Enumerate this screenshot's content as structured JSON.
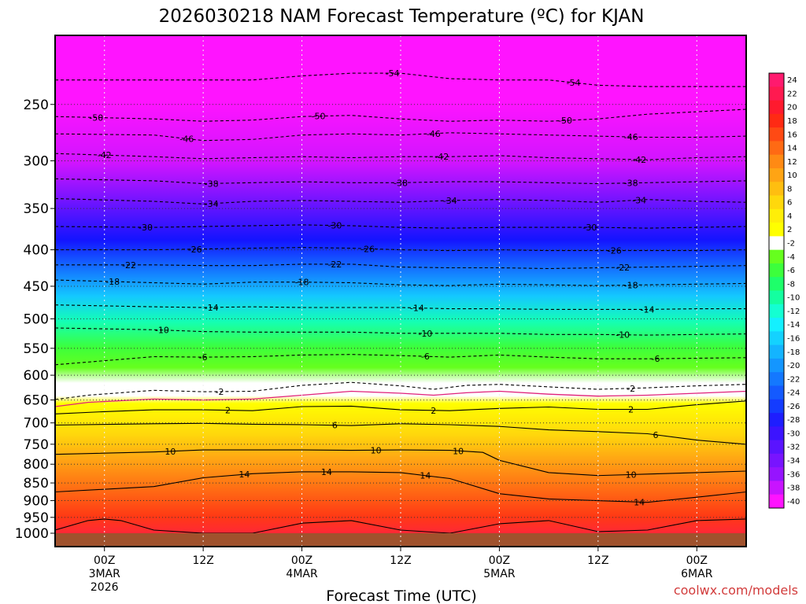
{
  "chart_data": {
    "type": "heatmap",
    "title": "2026030218 NAM Forecast Temperature (ºC) for KJAN",
    "xlabel": "Forecast Time (UTC)",
    "ylabel": "",
    "credit": "coolwx.com/models",
    "y_scale": "log-pressure",
    "ylim": [
      1000,
      200
    ],
    "y_ticks": [
      250,
      300,
      350,
      400,
      450,
      500,
      550,
      600,
      650,
      700,
      750,
      800,
      850,
      900,
      950,
      1000
    ],
    "xlim": [
      -6,
      78
    ],
    "x_ticks": [
      {
        "hour": 0,
        "lines": [
          "00Z",
          "3MAR",
          "2026"
        ]
      },
      {
        "hour": 12,
        "lines": [
          "12Z"
        ]
      },
      {
        "hour": 24,
        "lines": [
          "00Z",
          "4MAR"
        ]
      },
      {
        "hour": 36,
        "lines": [
          "12Z"
        ]
      },
      {
        "hour": 48,
        "lines": [
          "00Z",
          "5MAR"
        ]
      },
      {
        "hour": 60,
        "lines": [
          "12Z"
        ]
      },
      {
        "hour": 72,
        "lines": [
          "00Z",
          "6MAR"
        ]
      }
    ],
    "grid": true,
    "colorbar": {
      "placement": "right",
      "levels": [
        24,
        22,
        20,
        18,
        16,
        14,
        12,
        10,
        8,
        6,
        4,
        2,
        -2,
        -4,
        -6,
        -8,
        -10,
        -12,
        -14,
        -16,
        -18,
        -20,
        -22,
        -24,
        -26,
        -28,
        -30,
        -32,
        -34,
        -36,
        -38,
        -40
      ],
      "colors": [
        "#ff1a6e",
        "#ff1a50",
        "#ff1a2e",
        "#ff2a14",
        "#ff4a14",
        "#ff6a14",
        "#ff8a14",
        "#ffa414",
        "#ffbe10",
        "#ffd80c",
        "#ffee08",
        "#ffff00",
        "#ffffff",
        "#66ff1e",
        "#3cff3c",
        "#1eff6a",
        "#14ffa0",
        "#14ffd2",
        "#14f0ff",
        "#14d2ff",
        "#14b4ff",
        "#1496ff",
        "#1478ff",
        "#145aff",
        "#143cff",
        "#1e1eff",
        "#3c14ff",
        "#5a14ff",
        "#7814ff",
        "#9614ff",
        "#c814ff",
        "#ff14ff"
      ]
    },
    "isotherms": [
      {
        "value": -54,
        "x": [
          -6,
          6,
          12,
          18,
          24,
          30,
          36,
          42,
          48,
          54,
          60,
          66,
          72,
          78
        ],
        "p": [
          231,
          231,
          231,
          231,
          228,
          226,
          226,
          230,
          231,
          231,
          235,
          236,
          236,
          236
        ],
        "labels": [
          {
            "hour": 35,
            "text": "-54"
          },
          {
            "hour": 57,
            "text": "-54"
          }
        ]
      },
      {
        "value": -50,
        "x": [
          -6,
          6,
          12,
          18,
          24,
          30,
          36,
          42,
          48,
          54,
          60,
          66,
          72,
          78
        ],
        "p": [
          260,
          262,
          264,
          263,
          260,
          259,
          262,
          264,
          263,
          264,
          262,
          258,
          256,
          254
        ],
        "labels": [
          {
            "hour": -1,
            "text": "-50"
          },
          {
            "hour": 26,
            "text": "-50"
          },
          {
            "hour": 56,
            "text": "-50"
          }
        ]
      },
      {
        "value": -46,
        "x": [
          -6,
          6,
          12,
          18,
          24,
          30,
          36,
          42,
          48,
          54,
          60,
          66,
          72,
          78
        ],
        "p": [
          275,
          276,
          281,
          280,
          276,
          275,
          276,
          274,
          275,
          276,
          277,
          278,
          278,
          277
        ],
        "labels": [
          {
            "hour": 10,
            "text": "-46"
          },
          {
            "hour": 40,
            "text": "-46"
          },
          {
            "hour": 64,
            "text": "-46"
          }
        ]
      },
      {
        "value": -42,
        "x": [
          -6,
          6,
          12,
          18,
          24,
          30,
          36,
          42,
          48,
          54,
          60,
          66,
          72,
          78
        ],
        "p": [
          293,
          296,
          298,
          297,
          296,
          297,
          296,
          296,
          295,
          297,
          298,
          299,
          297,
          296
        ],
        "labels": [
          {
            "hour": 0,
            "text": "-42"
          },
          {
            "hour": 41,
            "text": "-42"
          },
          {
            "hour": 65,
            "text": "-42"
          }
        ]
      },
      {
        "value": -38,
        "x": [
          -6,
          6,
          12,
          18,
          24,
          30,
          36,
          42,
          48,
          54,
          60,
          66,
          72,
          78
        ],
        "p": [
          318,
          320,
          323,
          322,
          321,
          322,
          322,
          321,
          321,
          322,
          323,
          322,
          321,
          320
        ],
        "labels": [
          {
            "hour": 13,
            "text": "-38"
          },
          {
            "hour": 36,
            "text": "-38"
          },
          {
            "hour": 64,
            "text": "-38"
          }
        ]
      },
      {
        "value": -34,
        "x": [
          -6,
          6,
          12,
          18,
          24,
          30,
          36,
          42,
          48,
          54,
          60,
          66,
          72,
          78
        ],
        "p": [
          339,
          342,
          345,
          342,
          341,
          342,
          343,
          341,
          340,
          341,
          343,
          340,
          342,
          343
        ],
        "labels": [
          {
            "hour": 13,
            "text": "-34"
          },
          {
            "hour": 42,
            "text": "-34"
          },
          {
            "hour": 65,
            "text": "-34"
          }
        ]
      },
      {
        "value": -30,
        "x": [
          -6,
          6,
          12,
          18,
          24,
          30,
          36,
          42,
          48,
          54,
          60,
          66,
          72,
          78
        ],
        "p": [
          371,
          372,
          371,
          370,
          369,
          370,
          372,
          373,
          372,
          372,
          372,
          373,
          372,
          371
        ],
        "labels": [
          {
            "hour": 5,
            "text": "-30"
          },
          {
            "hour": 28,
            "text": "-30"
          },
          {
            "hour": 59,
            "text": "-30"
          }
        ]
      },
      {
        "value": -26,
        "x": [
          -6,
          6,
          12,
          18,
          24,
          30,
          36,
          42,
          48,
          54,
          60,
          66,
          72,
          78
        ],
        "p": [
          400,
          400,
          399,
          398,
          397,
          398,
          400,
          401,
          400,
          401,
          401,
          401,
          401,
          400
        ],
        "labels": [
          {
            "hour": 11,
            "text": "-26"
          },
          {
            "hour": 32,
            "text": "-26"
          },
          {
            "hour": 62,
            "text": "-26"
          }
        ]
      },
      {
        "value": -22,
        "x": [
          -6,
          6,
          12,
          18,
          24,
          30,
          36,
          42,
          48,
          54,
          60,
          66,
          72,
          78
        ],
        "p": [
          420,
          420,
          421,
          421,
          419,
          419,
          423,
          424,
          424,
          425,
          424,
          423,
          422,
          421
        ],
        "labels": [
          {
            "hour": 3,
            "text": "-22"
          },
          {
            "hour": 28,
            "text": "-22"
          },
          {
            "hour": 63,
            "text": "-22"
          }
        ]
      },
      {
        "value": -18,
        "x": [
          -6,
          6,
          12,
          18,
          24,
          30,
          36,
          42,
          48,
          54,
          60,
          66,
          72,
          78
        ],
        "p": [
          441,
          445,
          447,
          444,
          444,
          445,
          448,
          449,
          447,
          448,
          449,
          448,
          447,
          446
        ],
        "labels": [
          {
            "hour": 1,
            "text": "-18"
          },
          {
            "hour": 24,
            "text": "-18"
          },
          {
            "hour": 64,
            "text": "-18"
          }
        ]
      },
      {
        "value": -14,
        "x": [
          -6,
          6,
          12,
          18,
          24,
          30,
          36,
          42,
          48,
          54,
          60,
          66,
          72,
          78
        ],
        "p": [
          478,
          481,
          482,
          481,
          482,
          482,
          482,
          484,
          484,
          485,
          485,
          485,
          484,
          484
        ],
        "labels": [
          {
            "hour": 13,
            "text": "-14"
          },
          {
            "hour": 38,
            "text": "-14"
          },
          {
            "hour": 66,
            "text": "-14"
          }
        ]
      },
      {
        "value": -10,
        "x": [
          -6,
          6,
          12,
          18,
          24,
          30,
          36,
          42,
          48,
          54,
          60,
          66,
          72,
          78
        ],
        "p": [
          515,
          518,
          521,
          522,
          522,
          522,
          524,
          524,
          524,
          526,
          526,
          527,
          526,
          525
        ],
        "labels": [
          {
            "hour": 7,
            "text": "-10"
          },
          {
            "hour": 39,
            "text": "-10"
          },
          {
            "hour": 63,
            "text": "-10"
          }
        ]
      },
      {
        "value": -6,
        "x": [
          -6,
          6,
          12,
          18,
          24,
          30,
          36,
          42,
          48,
          54,
          60,
          66,
          72,
          78
        ],
        "p": [
          580,
          565,
          566,
          565,
          562,
          561,
          563,
          566,
          562,
          566,
          569,
          569,
          568,
          567
        ],
        "labels": [
          {
            "hour": 12,
            "text": "-6"
          },
          {
            "hour": 39,
            "text": "-6"
          },
          {
            "hour": 67,
            "text": "-6"
          }
        ]
      },
      {
        "value": -2,
        "x": [
          -6,
          -2,
          6,
          12,
          18,
          24,
          30,
          36,
          40,
          44,
          48,
          54,
          60,
          66,
          72,
          78
        ],
        "p": [
          649,
          640,
          630,
          633,
          632,
          620,
          614,
          621,
          628,
          620,
          618,
          623,
          628,
          625,
          621,
          618
        ],
        "labels": [
          {
            "hour": 14,
            "text": "-2"
          },
          {
            "hour": 64,
            "text": "-2"
          }
        ]
      },
      {
        "value": 0,
        "x": [
          -6,
          -2,
          6,
          12,
          18,
          24,
          30,
          36,
          40,
          44,
          48,
          54,
          60,
          66,
          72,
          78
        ],
        "p": [
          664,
          655,
          648,
          650,
          648,
          640,
          632,
          636,
          640,
          635,
          632,
          638,
          642,
          640,
          636,
          632
        ],
        "labels": []
      },
      {
        "value": 2,
        "x": [
          -6,
          0,
          6,
          12,
          18,
          24,
          30,
          36,
          42,
          48,
          54,
          60,
          66,
          72,
          78
        ],
        "p": [
          680,
          675,
          671,
          671,
          673,
          664,
          663,
          671,
          673,
          668,
          665,
          670,
          670,
          660,
          652
        ],
        "labels": [
          {
            "hour": 15,
            "text": "2"
          },
          {
            "hour": 40,
            "text": "2"
          },
          {
            "hour": 64,
            "text": "2"
          }
        ]
      },
      {
        "value": 6,
        "x": [
          -6,
          6,
          12,
          18,
          24,
          30,
          36,
          42,
          48,
          54,
          60,
          66,
          72,
          78
        ],
        "p": [
          705,
          702,
          701,
          703,
          704,
          706,
          702,
          704,
          708,
          716,
          720,
          725,
          740,
          750
        ],
        "labels": [
          {
            "hour": 28,
            "text": "6"
          },
          {
            "hour": 67,
            "text": "6"
          }
        ]
      },
      {
        "value": 10,
        "x": [
          -6,
          6,
          12,
          18,
          24,
          30,
          36,
          42,
          46,
          48,
          54,
          60,
          66,
          72,
          78
        ],
        "p": [
          775,
          769,
          764,
          764,
          764,
          765,
          764,
          765,
          770,
          790,
          822,
          830,
          826,
          822,
          818
        ],
        "labels": [
          {
            "hour": 8,
            "text": "10"
          },
          {
            "hour": 33,
            "text": "10"
          },
          {
            "hour": 43,
            "text": "10"
          },
          {
            "hour": 64,
            "text": "10"
          }
        ]
      },
      {
        "value": 14,
        "x": [
          -6,
          6,
          12,
          18,
          24,
          30,
          36,
          42,
          48,
          54,
          60,
          66,
          72,
          78
        ],
        "p": [
          875,
          860,
          836,
          825,
          820,
          820,
          822,
          838,
          880,
          895,
          900,
          905,
          890,
          875
        ],
        "labels": [
          {
            "hour": 17,
            "text": "14"
          },
          {
            "hour": 27,
            "text": "14"
          },
          {
            "hour": 39,
            "text": "14"
          },
          {
            "hour": 65,
            "text": "14"
          }
        ]
      },
      {
        "value": 18,
        "x": [
          -6,
          -2,
          0,
          2,
          6,
          12,
          18,
          24,
          30,
          36,
          42,
          48,
          54,
          60,
          66,
          72,
          78
        ],
        "p": [
          990,
          960,
          955,
          960,
          990,
          1000,
          1000,
          968,
          960,
          990,
          1000,
          970,
          960,
          995,
          990,
          960,
          955
        ],
        "labels": []
      }
    ]
  }
}
